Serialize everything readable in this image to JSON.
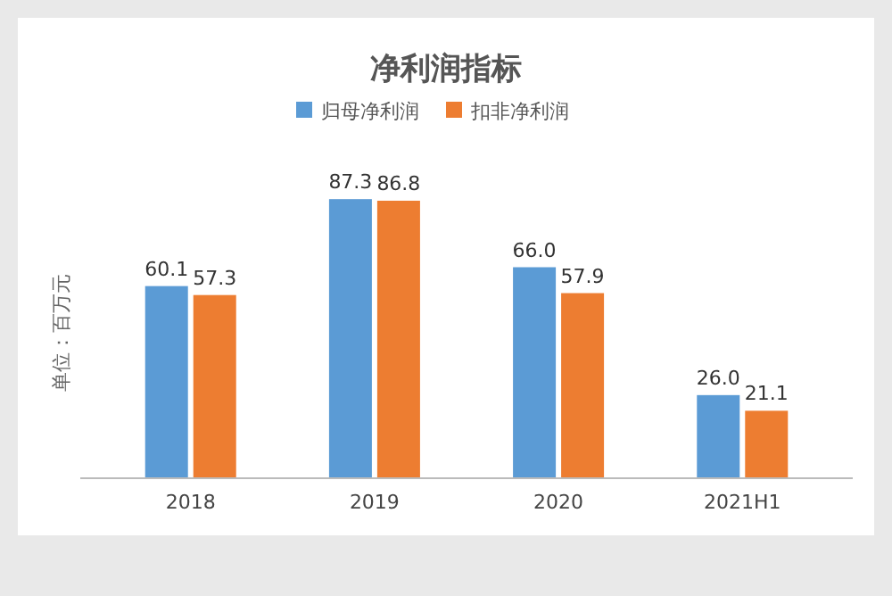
{
  "chart_data": {
    "type": "bar",
    "title": "净利润指标",
    "ylabel": "单位：百万元",
    "categories": [
      "2018",
      "2019",
      "2020",
      "2021H1"
    ],
    "series": [
      {
        "name": "归母净利润",
        "color": "#5b9bd5",
        "values": [
          60.1,
          87.3,
          66.0,
          26.0
        ],
        "value_labels": [
          "60.1",
          "87.3",
          "66.0",
          "26.0"
        ]
      },
      {
        "name": "扣非净利润",
        "color": "#ed7d31",
        "values": [
          57.3,
          86.8,
          57.9,
          21.1
        ],
        "value_labels": [
          "57.3",
          "86.8",
          "57.9",
          "21.1"
        ]
      }
    ],
    "legend": "top",
    "grid": false
  }
}
